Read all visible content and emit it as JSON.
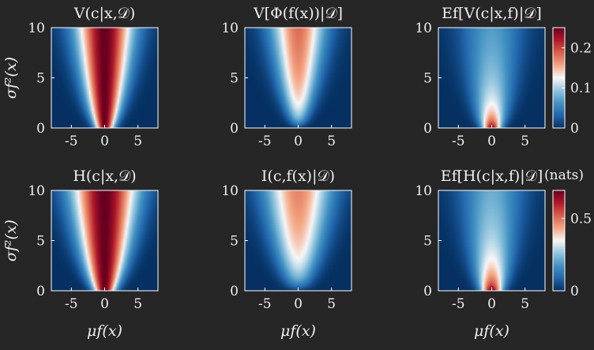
{
  "figure": {
    "background": "#262626",
    "text_color": "#f0f0f0"
  },
  "chart_data": [
    {
      "type": "heatmap",
      "title": "V(c|x,𝒟)",
      "xlabel": "",
      "ylabel": "σf²(x)",
      "xlim": [
        -8,
        8
      ],
      "ylim": [
        0,
        10
      ],
      "xticks": [
        -5,
        0,
        5
      ],
      "yticks": [
        0,
        5,
        10
      ],
      "xtick_labels": [
        "-5",
        "0",
        "5"
      ],
      "ytick_labels": [
        "0",
        "5",
        "10"
      ],
      "colormap": "RdBu_r",
      "function": "total_var",
      "vmax": 0.25
    },
    {
      "type": "heatmap",
      "title": "V[Φ(f(x))|𝒟]",
      "xlabel": "",
      "ylabel": "",
      "xlim": [
        -8,
        8
      ],
      "ylim": [
        0,
        10
      ],
      "xticks": [
        -5,
        0,
        5
      ],
      "yticks": [
        0,
        5,
        10
      ],
      "xtick_labels": [
        "-5",
        "0",
        "5"
      ],
      "ytick_labels": [
        "0",
        "5",
        "10"
      ],
      "colormap": "RdBu_r",
      "function": "epistemic_var",
      "vmax": 0.25
    },
    {
      "type": "heatmap",
      "title": "Ef[V(c|x,f)|𝒟]",
      "xlabel": "",
      "ylabel": "",
      "xlim": [
        -8,
        8
      ],
      "ylim": [
        0,
        10
      ],
      "xticks": [
        -5,
        0,
        5
      ],
      "yticks": [
        0,
        5,
        10
      ],
      "xtick_labels": [
        "-5",
        "0",
        "5"
      ],
      "ytick_labels": [
        "0",
        "5",
        "10"
      ],
      "colormap": "RdBu_r",
      "function": "aleatoric_var",
      "vmax": 0.25,
      "colorbar": {
        "range": [
          0,
          0.25
        ],
        "ticks": [
          0,
          0.1,
          0.2
        ],
        "tick_labels": [
          "0",
          "0.1",
          "0.2"
        ]
      }
    },
    {
      "type": "heatmap",
      "title": "H(c|x,𝒟)",
      "xlabel": "μf(x)",
      "ylabel": "σf²(x)",
      "xlim": [
        -8,
        8
      ],
      "ylim": [
        0,
        10
      ],
      "xticks": [
        -5,
        0,
        5
      ],
      "yticks": [
        0,
        5,
        10
      ],
      "xtick_labels": [
        "-5",
        "0",
        "5"
      ],
      "ytick_labels": [
        "0",
        "5",
        "10"
      ],
      "colormap": "RdBu_r",
      "function": "total_entropy",
      "vmax": 0.6931
    },
    {
      "type": "heatmap",
      "title": "I(c,f(x)|𝒟)",
      "xlabel": "μf(x)",
      "ylabel": "",
      "xlim": [
        -8,
        8
      ],
      "ylim": [
        0,
        10
      ],
      "xticks": [
        -5,
        0,
        5
      ],
      "yticks": [
        0,
        5,
        10
      ],
      "xtick_labels": [
        "-5",
        "0",
        "5"
      ],
      "ytick_labels": [
        "0",
        "5",
        "10"
      ],
      "colormap": "RdBu_r",
      "function": "mutual_info",
      "vmax": 0.6931
    },
    {
      "type": "heatmap",
      "title": "Ef[H(c|x,f)|𝒟]",
      "xlabel": "μf(x)",
      "ylabel": "",
      "xlim": [
        -8,
        8
      ],
      "ylim": [
        0,
        10
      ],
      "xticks": [
        -5,
        0,
        5
      ],
      "yticks": [
        0,
        5,
        10
      ],
      "xtick_labels": [
        "-5",
        "0",
        "5"
      ],
      "ytick_labels": [
        "0",
        "5",
        "10"
      ],
      "colormap": "RdBu_r",
      "function": "aleatoric_entropy",
      "vmax": 0.6931,
      "colorbar": {
        "range": [
          0,
          0.6931
        ],
        "ticks": [
          0,
          0.5
        ],
        "tick_labels": [
          "0",
          "0.5"
        ],
        "label": "(nats)"
      }
    }
  ]
}
